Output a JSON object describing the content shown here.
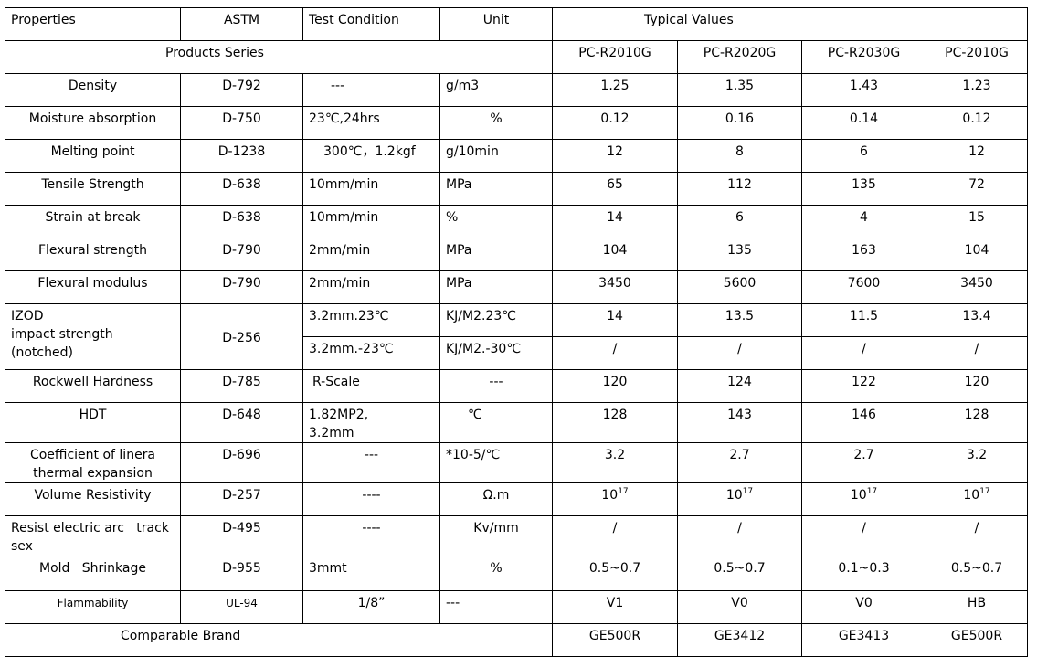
{
  "header": {
    "properties": "Properties",
    "astm": "ASTM",
    "test_condition": "Test Condition",
    "unit": "Unit",
    "typical_values": "Typical Values"
  },
  "series_row": {
    "label": "Products Series",
    "products": [
      "PC-R2010G",
      "PC-R2020G",
      "PC-R2030G",
      "PC-2010G"
    ]
  },
  "rows": [
    {
      "property": "Density",
      "astm": "D-792",
      "condition": "---",
      "unit": "g/m3",
      "values": [
        "1.25",
        "1.35",
        "1.43",
        "1.23"
      ]
    },
    {
      "property": "Moisture absorption",
      "astm": "D-750",
      "condition": "23℃,24hrs",
      "unit": "%",
      "values": [
        "0.12",
        "0.16",
        "0.14",
        "0.12"
      ]
    },
    {
      "property": "Melting point",
      "astm": "D-1238",
      "condition": "300℃，1.2kgf",
      "unit": "g/10min",
      "values": [
        "12",
        "8",
        "6",
        "12"
      ]
    },
    {
      "property": "Tensile Strength",
      "astm": "D-638",
      "condition": "10mm/min",
      "unit": "MPa",
      "values": [
        "65",
        "112",
        "135",
        "72"
      ]
    },
    {
      "property": "Strain at break",
      "astm": "D-638",
      "condition": "10mm/min",
      "unit": "%",
      "values": [
        "14",
        "6",
        "4",
        "15"
      ]
    },
    {
      "property": "Flexural strength",
      "astm": "D-790",
      "condition": "2mm/min",
      "unit": "MPa",
      "values": [
        "104",
        "135",
        "163",
        "104"
      ]
    },
    {
      "property": "Flexural modulus",
      "astm": "D-790",
      "condition": "2mm/min",
      "unit": "MPa",
      "values": [
        "3450",
        "5600",
        "7600",
        "3450"
      ]
    },
    {
      "property": "IZOD\nimpact strength\n(notched)",
      "astm": "D-256",
      "condition": "3.2mm.23℃",
      "unit": "KJ/M2.23℃",
      "values": [
        "14",
        "13.5",
        "11.5",
        "13.4"
      ]
    },
    {
      "condition": "3.2mm.-23℃",
      "unit": "KJ/M2.-30℃",
      "values": [
        "/",
        "/",
        "/",
        "/"
      ]
    },
    {
      "property": "Rockwell Hardness",
      "astm": "D-785",
      "condition": "R-Scale",
      "unit": "---",
      "values": [
        "120",
        "124",
        "122",
        "120"
      ]
    },
    {
      "property": "HDT",
      "astm": "D-648",
      "condition": "1.82MP2,\n3.2mm",
      "unit": "℃",
      "values": [
        "128",
        "143",
        "146",
        "128"
      ]
    },
    {
      "property": "Coefficient of linera\nthermal expansion",
      "astm": "D-696",
      "condition": "---",
      "unit": "*10-5/℃",
      "values": [
        "3.2",
        "2.7",
        "2.7",
        "3.2"
      ]
    },
    {
      "property": "Volume Resistivity",
      "astm": "D-257",
      "condition": "----",
      "unit": "Ω.m",
      "values": [
        {
          "base": "10",
          "exp": "17"
        },
        {
          "base": "10",
          "exp": "17"
        },
        {
          "base": "10",
          "exp": "17"
        },
        {
          "base": "10",
          "exp": "17"
        }
      ]
    },
    {
      "property": "Resist electric arc   track\nsex",
      "astm": "D-495",
      "condition": "----",
      "unit": "Kv/mm",
      "values": [
        "/",
        "/",
        "/",
        "/"
      ]
    },
    {
      "property": "Mold   Shrinkage",
      "astm": "D-955",
      "condition": "3mmt",
      "unit": "%",
      "values": [
        "0.5~0.7",
        "0.5~0.7",
        "0.1~0.3",
        "0.5~0.7"
      ]
    },
    {
      "property": "Flammability",
      "astm": "UL-94",
      "condition": "1/8”",
      "unit": "---",
      "values": [
        "V1",
        "V0",
        "V0",
        "HB"
      ]
    }
  ],
  "brand_row": {
    "label": "Comparable Brand",
    "values": [
      "GE500R",
      "GE3412",
      "GE3413",
      "GE500R"
    ]
  }
}
